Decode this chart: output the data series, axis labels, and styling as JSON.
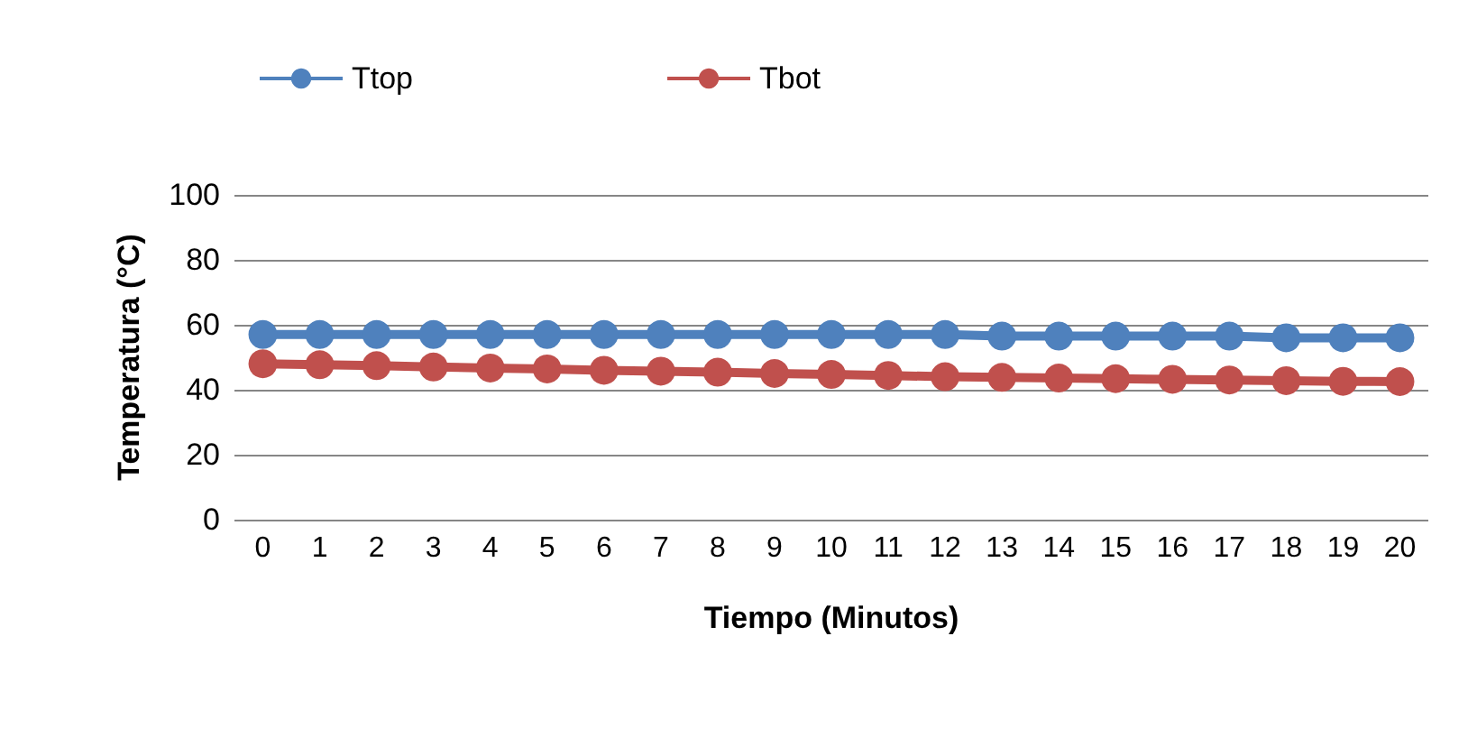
{
  "chart_data": {
    "type": "line",
    "xlabel": "Tiempo (Minutos)",
    "ylabel": "Temperatura (°C)",
    "x": [
      0,
      1,
      2,
      3,
      4,
      5,
      6,
      7,
      8,
      9,
      10,
      11,
      12,
      13,
      14,
      15,
      16,
      17,
      18,
      19,
      20
    ],
    "xlim": [
      -0.5,
      20.5
    ],
    "xticks": [
      0,
      1,
      2,
      3,
      4,
      5,
      6,
      7,
      8,
      9,
      10,
      11,
      12,
      13,
      14,
      15,
      16,
      17,
      18,
      19,
      20
    ],
    "series": [
      {
        "name": "Ttop",
        "color": "#4f81bd",
        "values": [
          57,
          57,
          57,
          57,
          57,
          57,
          57,
          57,
          57,
          57,
          57,
          57,
          57,
          56.5,
          56.5,
          56.5,
          56.5,
          56.5,
          56,
          56,
          56
        ]
      },
      {
        "name": "Tbot",
        "color": "#c0504d",
        "values": [
          48,
          47.7,
          47.4,
          47,
          46.7,
          46.4,
          46,
          45.7,
          45.4,
          45,
          44.7,
          44.4,
          44,
          43.8,
          43.6,
          43.4,
          43.2,
          43,
          42.8,
          42.6,
          42.5
        ]
      }
    ],
    "ylim": [
      0,
      100
    ],
    "yticks": [
      0,
      20,
      40,
      60,
      80,
      100
    ],
    "grid": "y",
    "legend": "top left",
    "marker": "circle",
    "line_style": "solid"
  }
}
